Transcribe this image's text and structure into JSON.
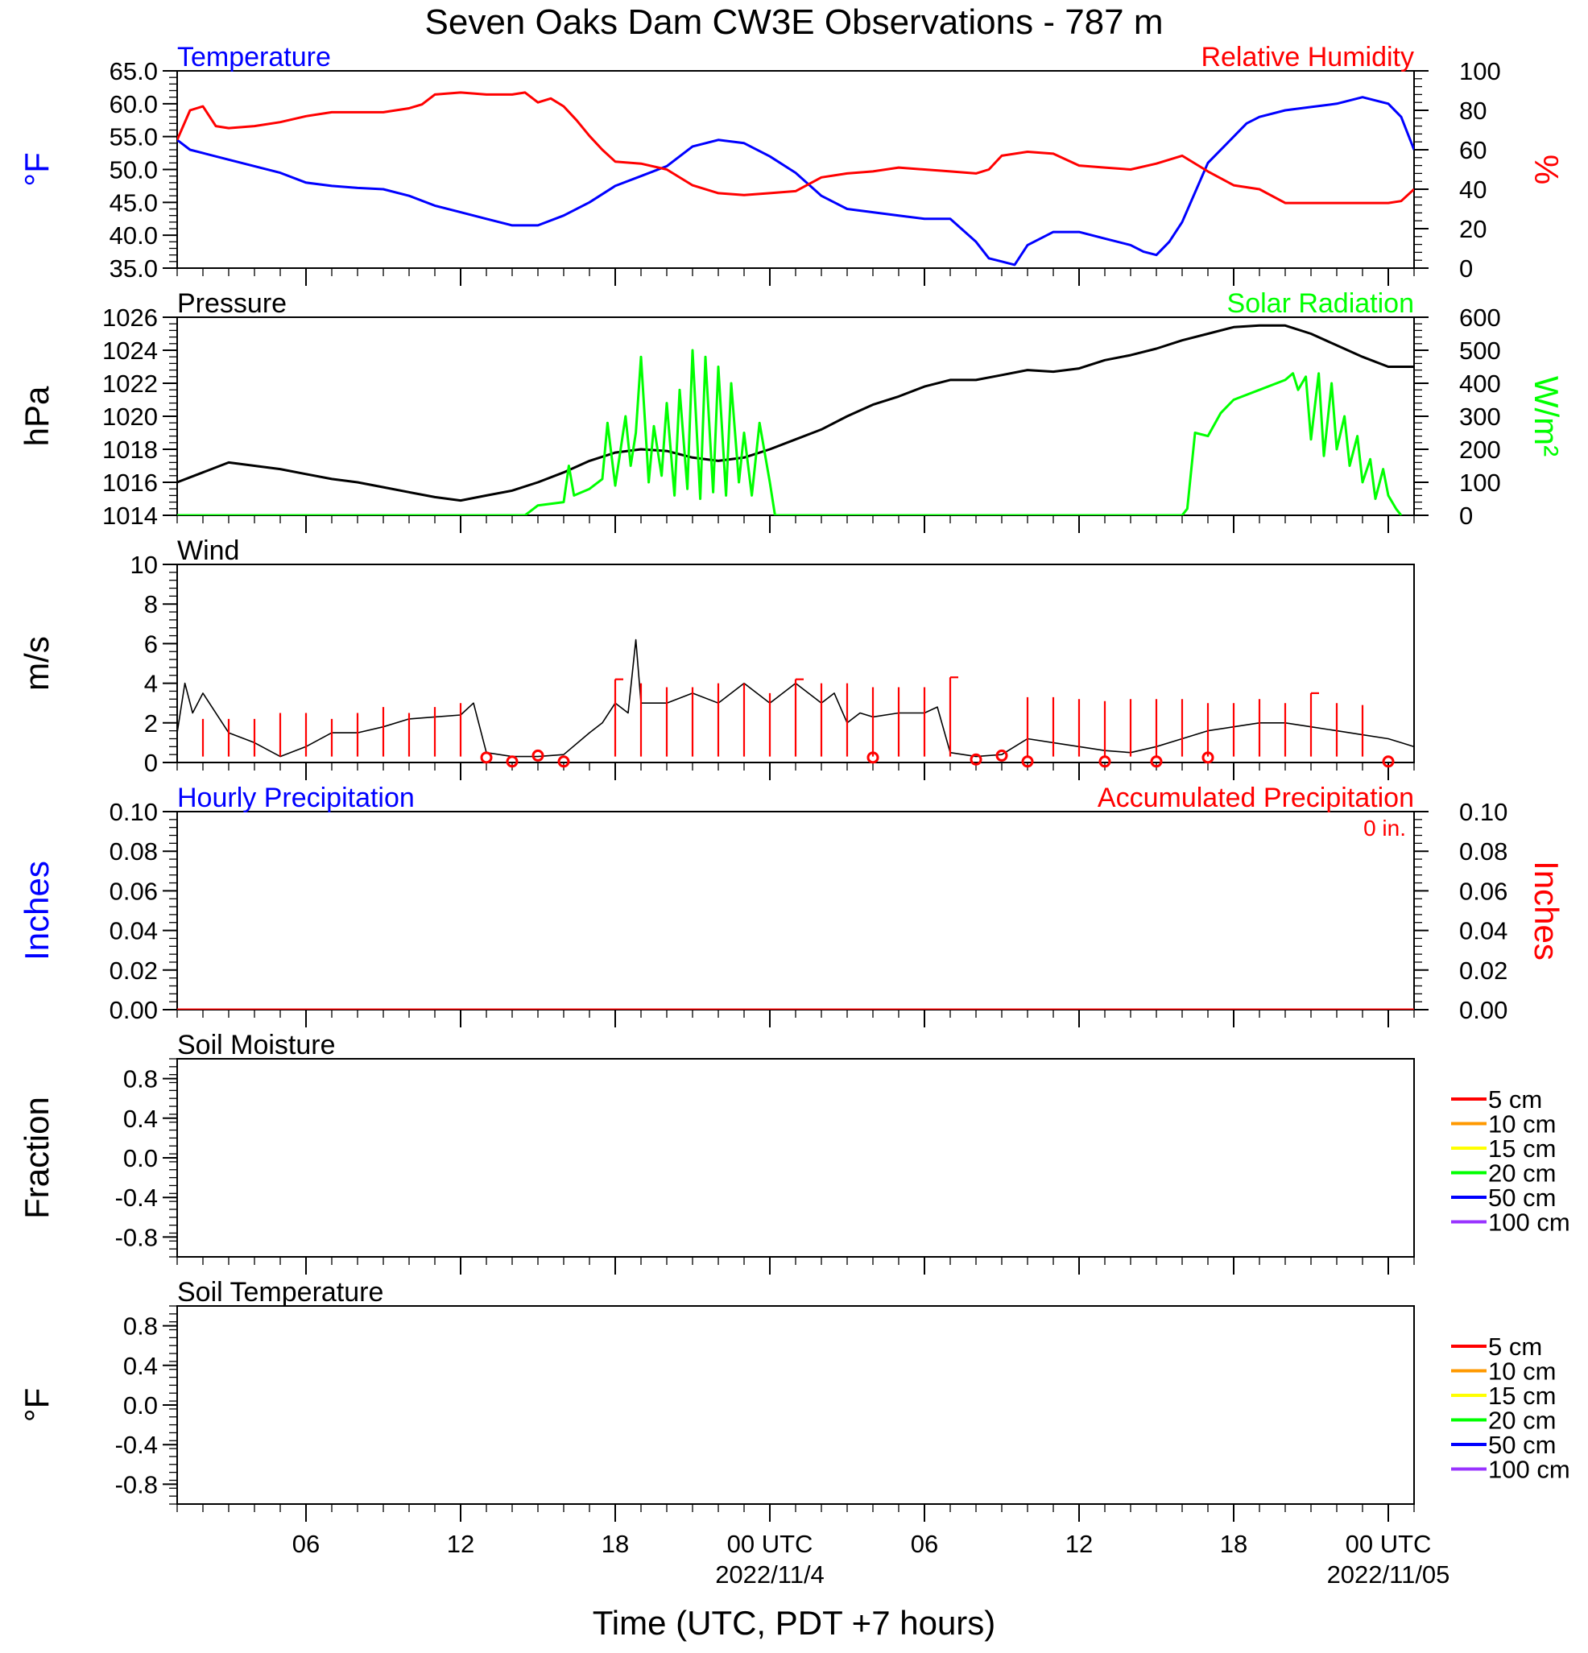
{
  "page": {
    "title": "Seven Oaks Dam CW3E Observations - 787 m",
    "xlabel": "Time (UTC, PDT +7 hours)",
    "x_ticks": [
      {
        "t": 6,
        "lines": [
          "06"
        ]
      },
      {
        "t": 12,
        "lines": [
          "12"
        ]
      },
      {
        "t": 18,
        "lines": [
          "18"
        ]
      },
      {
        "t": 24,
        "lines": [
          "00 UTC",
          "2022/11/4"
        ]
      },
      {
        "t": 30,
        "lines": [
          "06"
        ]
      },
      {
        "t": 36,
        "lines": [
          "12"
        ]
      },
      {
        "t": 42,
        "lines": [
          "18"
        ]
      },
      {
        "t": 48,
        "lines": [
          "00 UTC",
          "2022/11/05"
        ]
      }
    ],
    "x_range_hours": [
      1,
      49
    ]
  },
  "colors": {
    "temperature": "#0000ff",
    "humidity": "#ff0000",
    "pressure": "#000000",
    "solar": "#00ff00",
    "wind": "#000000",
    "barb": "#ff0000",
    "precip": "#ff0000"
  },
  "chart_data": [
    {
      "type": "line",
      "name": "temperature-panel",
      "left_label": "Temperature",
      "right_label": "Relative Humidity",
      "left_axis_title": "°F",
      "right_axis_title": "%",
      "left_ylim": [
        35,
        65
      ],
      "right_ylim": [
        0,
        100
      ],
      "left_ticks": [
        "35.0",
        "40.0",
        "45.0",
        "50.0",
        "55.0",
        "60.0",
        "65.0"
      ],
      "right_ticks": [
        "0",
        "20",
        "40",
        "60",
        "80",
        "100"
      ],
      "series": [
        {
          "name": "Temperature",
          "axis": "left",
          "x": [
            1,
            1.5,
            2,
            3,
            4,
            5,
            6,
            7,
            8,
            9,
            10,
            11,
            12,
            13,
            14,
            15,
            16,
            17,
            18,
            19,
            20,
            21,
            22,
            23,
            24,
            25,
            26,
            27,
            28,
            29,
            30,
            31,
            32,
            32.5,
            33,
            33.5,
            34,
            35,
            36,
            37,
            38,
            38.5,
            39,
            39.5,
            40,
            41,
            42,
            42.5,
            43,
            44,
            45,
            46,
            47,
            48,
            48.5,
            49
          ],
          "values": [
            54.5,
            53,
            52.5,
            51.5,
            50.5,
            49.5,
            48,
            47.5,
            47.2,
            47,
            46,
            44.5,
            43.5,
            42.5,
            41.5,
            41.5,
            43,
            45,
            47.5,
            49,
            50.5,
            53.5,
            54.5,
            54,
            52,
            49.5,
            46,
            44,
            43.5,
            43,
            42.5,
            42.5,
            39,
            36.5,
            36,
            35.5,
            38.5,
            40.5,
            40.5,
            39.5,
            38.5,
            37.5,
            37,
            39,
            42,
            51,
            55,
            57,
            58,
            59,
            59.5,
            60,
            61,
            60,
            58,
            53
          ]
        },
        {
          "name": "Relative Humidity",
          "axis": "right",
          "x": [
            1,
            1.5,
            2,
            2.5,
            3,
            4,
            5,
            6,
            7,
            8,
            9,
            10,
            10.5,
            11,
            12,
            13,
            14,
            14.5,
            15,
            15.5,
            16,
            16.5,
            17,
            17.5,
            18,
            19,
            20,
            21,
            22,
            23,
            24,
            25,
            26,
            27,
            28,
            29,
            30,
            31,
            32,
            32.5,
            33,
            34,
            35,
            36,
            37,
            38,
            39,
            40,
            41,
            42,
            43,
            44,
            45,
            46,
            47,
            48,
            48.5,
            49
          ],
          "values": [
            65,
            80,
            82,
            72,
            71,
            72,
            74,
            77,
            79,
            79,
            79,
            81,
            83,
            88,
            89,
            88,
            88,
            89,
            84,
            86,
            82,
            75,
            67,
            60,
            54,
            53,
            50,
            42,
            38,
            37,
            38,
            39,
            46,
            48,
            49,
            51,
            50,
            49,
            48,
            50,
            57,
            59,
            58,
            52,
            51,
            50,
            53,
            57,
            49,
            42,
            40,
            33,
            33,
            33,
            33,
            33,
            34,
            40
          ]
        }
      ]
    },
    {
      "type": "line",
      "name": "pressure-panel",
      "left_label": "Pressure",
      "right_label": "Solar Radiation",
      "left_axis_title": "hPa",
      "right_axis_title": "W/m²",
      "left_ylim": [
        1014,
        1026
      ],
      "right_ylim": [
        0,
        600
      ],
      "left_ticks": [
        "1014",
        "1016",
        "1018",
        "1020",
        "1022",
        "1024",
        "1026"
      ],
      "right_ticks": [
        "0",
        "100",
        "200",
        "300",
        "400",
        "500",
        "600"
      ],
      "series": [
        {
          "name": "Pressure",
          "axis": "left",
          "x": [
            1,
            2,
            3,
            4,
            5,
            6,
            7,
            8,
            9,
            10,
            11,
            12,
            13,
            14,
            15,
            16,
            17,
            18,
            19,
            20,
            21,
            22,
            23,
            24,
            25,
            26,
            27,
            28,
            29,
            30,
            31,
            32,
            33,
            34,
            35,
            36,
            37,
            38,
            39,
            40,
            41,
            42,
            43,
            44,
            45,
            46,
            47,
            48,
            49
          ],
          "values": [
            1016,
            1016.6,
            1017.2,
            1017,
            1016.8,
            1016.5,
            1016.2,
            1016,
            1015.7,
            1015.4,
            1015.1,
            1014.9,
            1015.2,
            1015.5,
            1016,
            1016.6,
            1017.3,
            1017.8,
            1018,
            1017.9,
            1017.5,
            1017.3,
            1017.5,
            1018,
            1018.6,
            1019.2,
            1020,
            1020.7,
            1021.2,
            1021.8,
            1022.2,
            1022.2,
            1022.5,
            1022.8,
            1022.7,
            1022.9,
            1023.4,
            1023.7,
            1024.1,
            1024.6,
            1025,
            1025.4,
            1025.5,
            1025.5,
            1025,
            1024.3,
            1023.6,
            1023,
            1023
          ]
        },
        {
          "name": "Solar Radiation",
          "axis": "right",
          "x": [
            1,
            14.5,
            15,
            16,
            16.2,
            16.4,
            17,
            17.5,
            17.7,
            18,
            18.4,
            18.6,
            18.8,
            19,
            19.3,
            19.5,
            19.8,
            20,
            20.3,
            20.5,
            20.8,
            21,
            21.3,
            21.5,
            21.8,
            22,
            22.3,
            22.5,
            22.8,
            23,
            23.3,
            23.6,
            24,
            24.2,
            40,
            40.2,
            40.5,
            41,
            41.5,
            42,
            43,
            44,
            44.3,
            44.5,
            44.8,
            45,
            45.3,
            45.5,
            45.8,
            46,
            46.3,
            46.5,
            46.8,
            47,
            47.3,
            47.5,
            47.8,
            48,
            48.3,
            48.5
          ],
          "values": [
            0,
            0,
            30,
            40,
            150,
            60,
            80,
            110,
            280,
            90,
            300,
            150,
            250,
            480,
            100,
            270,
            120,
            340,
            60,
            380,
            80,
            500,
            50,
            480,
            70,
            450,
            60,
            400,
            100,
            250,
            60,
            280,
            100,
            0,
            0,
            20,
            250,
            240,
            310,
            350,
            380,
            410,
            430,
            380,
            420,
            230,
            430,
            180,
            400,
            200,
            300,
            150,
            240,
            100,
            170,
            50,
            140,
            60,
            20,
            0
          ]
        }
      ]
    },
    {
      "type": "line",
      "name": "wind-panel",
      "left_label": "Wind",
      "left_axis_title": "m/s",
      "left_ylim": [
        0,
        10
      ],
      "left_ticks": [
        "0",
        "2",
        "4",
        "6",
        "8",
        "10"
      ],
      "series": [
        {
          "name": "Wind",
          "x": [
            1,
            1.3,
            1.6,
            2,
            3,
            4,
            5,
            6,
            7,
            8,
            9,
            10,
            11,
            12,
            12.5,
            13,
            14,
            15,
            16,
            17,
            17.5,
            18,
            18.5,
            18.8,
            19,
            20,
            21,
            22,
            23,
            24,
            25,
            26,
            26.5,
            27,
            27.5,
            28,
            29,
            30,
            30.5,
            31,
            32,
            33,
            34,
            35,
            36,
            37,
            38,
            39,
            40,
            41,
            42,
            43,
            44,
            45,
            46,
            47,
            48,
            48.5,
            49
          ],
          "values": [
            1.5,
            4,
            2.5,
            3.5,
            1.5,
            1,
            0.3,
            0.8,
            1.5,
            1.5,
            1.8,
            2.2,
            2.3,
            2.4,
            3,
            0.5,
            0.3,
            0.3,
            0.4,
            1.5,
            2,
            3,
            2.5,
            6.2,
            3,
            3,
            3.5,
            3,
            4,
            3,
            4,
            3,
            3.5,
            2,
            2.5,
            2.3,
            2.5,
            2.5,
            2.8,
            0.5,
            0.3,
            0.4,
            1.2,
            1,
            0.8,
            0.6,
            0.5,
            0.8,
            1.2,
            1.6,
            1.8,
            2,
            2,
            1.8,
            1.6,
            1.4,
            1.2,
            1,
            0.8
          ]
        }
      ],
      "barbs": {
        "x": [
          2,
          3,
          4,
          5,
          6,
          7,
          8,
          9,
          10,
          11,
          12,
          18,
          19,
          20,
          21,
          22,
          23,
          24,
          25,
          26,
          27,
          28,
          29,
          30,
          31,
          34,
          35,
          36,
          37,
          38,
          39,
          40,
          41,
          42,
          43,
          44,
          45,
          46,
          47
        ],
        "speed": [
          2.2,
          2.2,
          2.2,
          2.5,
          2.5,
          2.2,
          2.5,
          2.8,
          2.5,
          2.8,
          3,
          4.2,
          4,
          3.8,
          3.8,
          4,
          4,
          3.5,
          4.2,
          4,
          4,
          3.8,
          3.8,
          3.8,
          4.3,
          3.3,
          3.3,
          3.2,
          3.1,
          3.2,
          3.2,
          3.2,
          3,
          3,
          3.2,
          3,
          3.5,
          3,
          2.9
        ],
        "flags": [
          0,
          0,
          0,
          0,
          0,
          0,
          0,
          0,
          0,
          0,
          0,
          1,
          0,
          0,
          0,
          0,
          0,
          0,
          1,
          0,
          0,
          0,
          0,
          0,
          1,
          0,
          0,
          0,
          0,
          0,
          0,
          0,
          0,
          0,
          0,
          0,
          1,
          0,
          0
        ]
      },
      "calm": {
        "x": [
          13,
          14,
          15,
          16,
          28,
          32,
          33,
          34,
          37,
          39,
          41,
          48
        ],
        "values": [
          0.25,
          0.05,
          0.35,
          0.05,
          0.25,
          0.15,
          0.35,
          0.05,
          0.05,
          0.05,
          0.25,
          0.05
        ]
      }
    },
    {
      "type": "line",
      "name": "precip-panel",
      "left_label": "Hourly Precipitation",
      "right_label": "Accumulated Precipitation",
      "left_axis_title": "Inches",
      "right_axis_title": "Inches",
      "accum_note": "0 in.",
      "left_ylim": [
        0,
        0.1
      ],
      "right_ylim": [
        0,
        0.1
      ],
      "left_ticks": [
        "0.00",
        "0.02",
        "0.04",
        "0.06",
        "0.08",
        "0.10"
      ],
      "right_ticks": [
        "0.00",
        "0.02",
        "0.04",
        "0.06",
        "0.08",
        "0.10"
      ],
      "series": [
        {
          "name": "Accumulated Precipitation",
          "axis": "right",
          "x": [
            1,
            49
          ],
          "values": [
            0,
            0
          ]
        }
      ]
    },
    {
      "type": "line",
      "name": "soil-moisture-panel",
      "left_label": "Soil Moisture",
      "left_axis_title": "Fraction",
      "left_ylim": [
        -1,
        1
      ],
      "left_ticks": [
        "-0.8",
        "-0.4",
        "0.0",
        "0.4",
        "0.8"
      ],
      "left_tick_values": [
        -0.8,
        -0.4,
        0,
        0.4,
        0.8
      ],
      "legend": [
        {
          "name": "5 cm",
          "color": "#ff0000"
        },
        {
          "name": "10 cm",
          "color": "#ff9900"
        },
        {
          "name": "15 cm",
          "color": "#ffff00"
        },
        {
          "name": "20 cm",
          "color": "#00ff00"
        },
        {
          "name": "50 cm",
          "color": "#0000ff"
        },
        {
          "name": "100 cm",
          "color": "#9933ff"
        }
      ],
      "series": []
    },
    {
      "type": "line",
      "name": "soil-temperature-panel",
      "left_label": "Soil Temperature",
      "left_axis_title": "°F",
      "left_ylim": [
        -1,
        1
      ],
      "left_ticks": [
        "-0.8",
        "-0.4",
        "0.0",
        "0.4",
        "0.8"
      ],
      "left_tick_values": [
        -0.8,
        -0.4,
        0,
        0.4,
        0.8
      ],
      "legend": [
        {
          "name": "5 cm",
          "color": "#ff0000"
        },
        {
          "name": "10 cm",
          "color": "#ff9900"
        },
        {
          "name": "15 cm",
          "color": "#ffff00"
        },
        {
          "name": "20 cm",
          "color": "#00ff00"
        },
        {
          "name": "50 cm",
          "color": "#0000ff"
        },
        {
          "name": "100 cm",
          "color": "#9933ff"
        }
      ],
      "series": []
    }
  ]
}
